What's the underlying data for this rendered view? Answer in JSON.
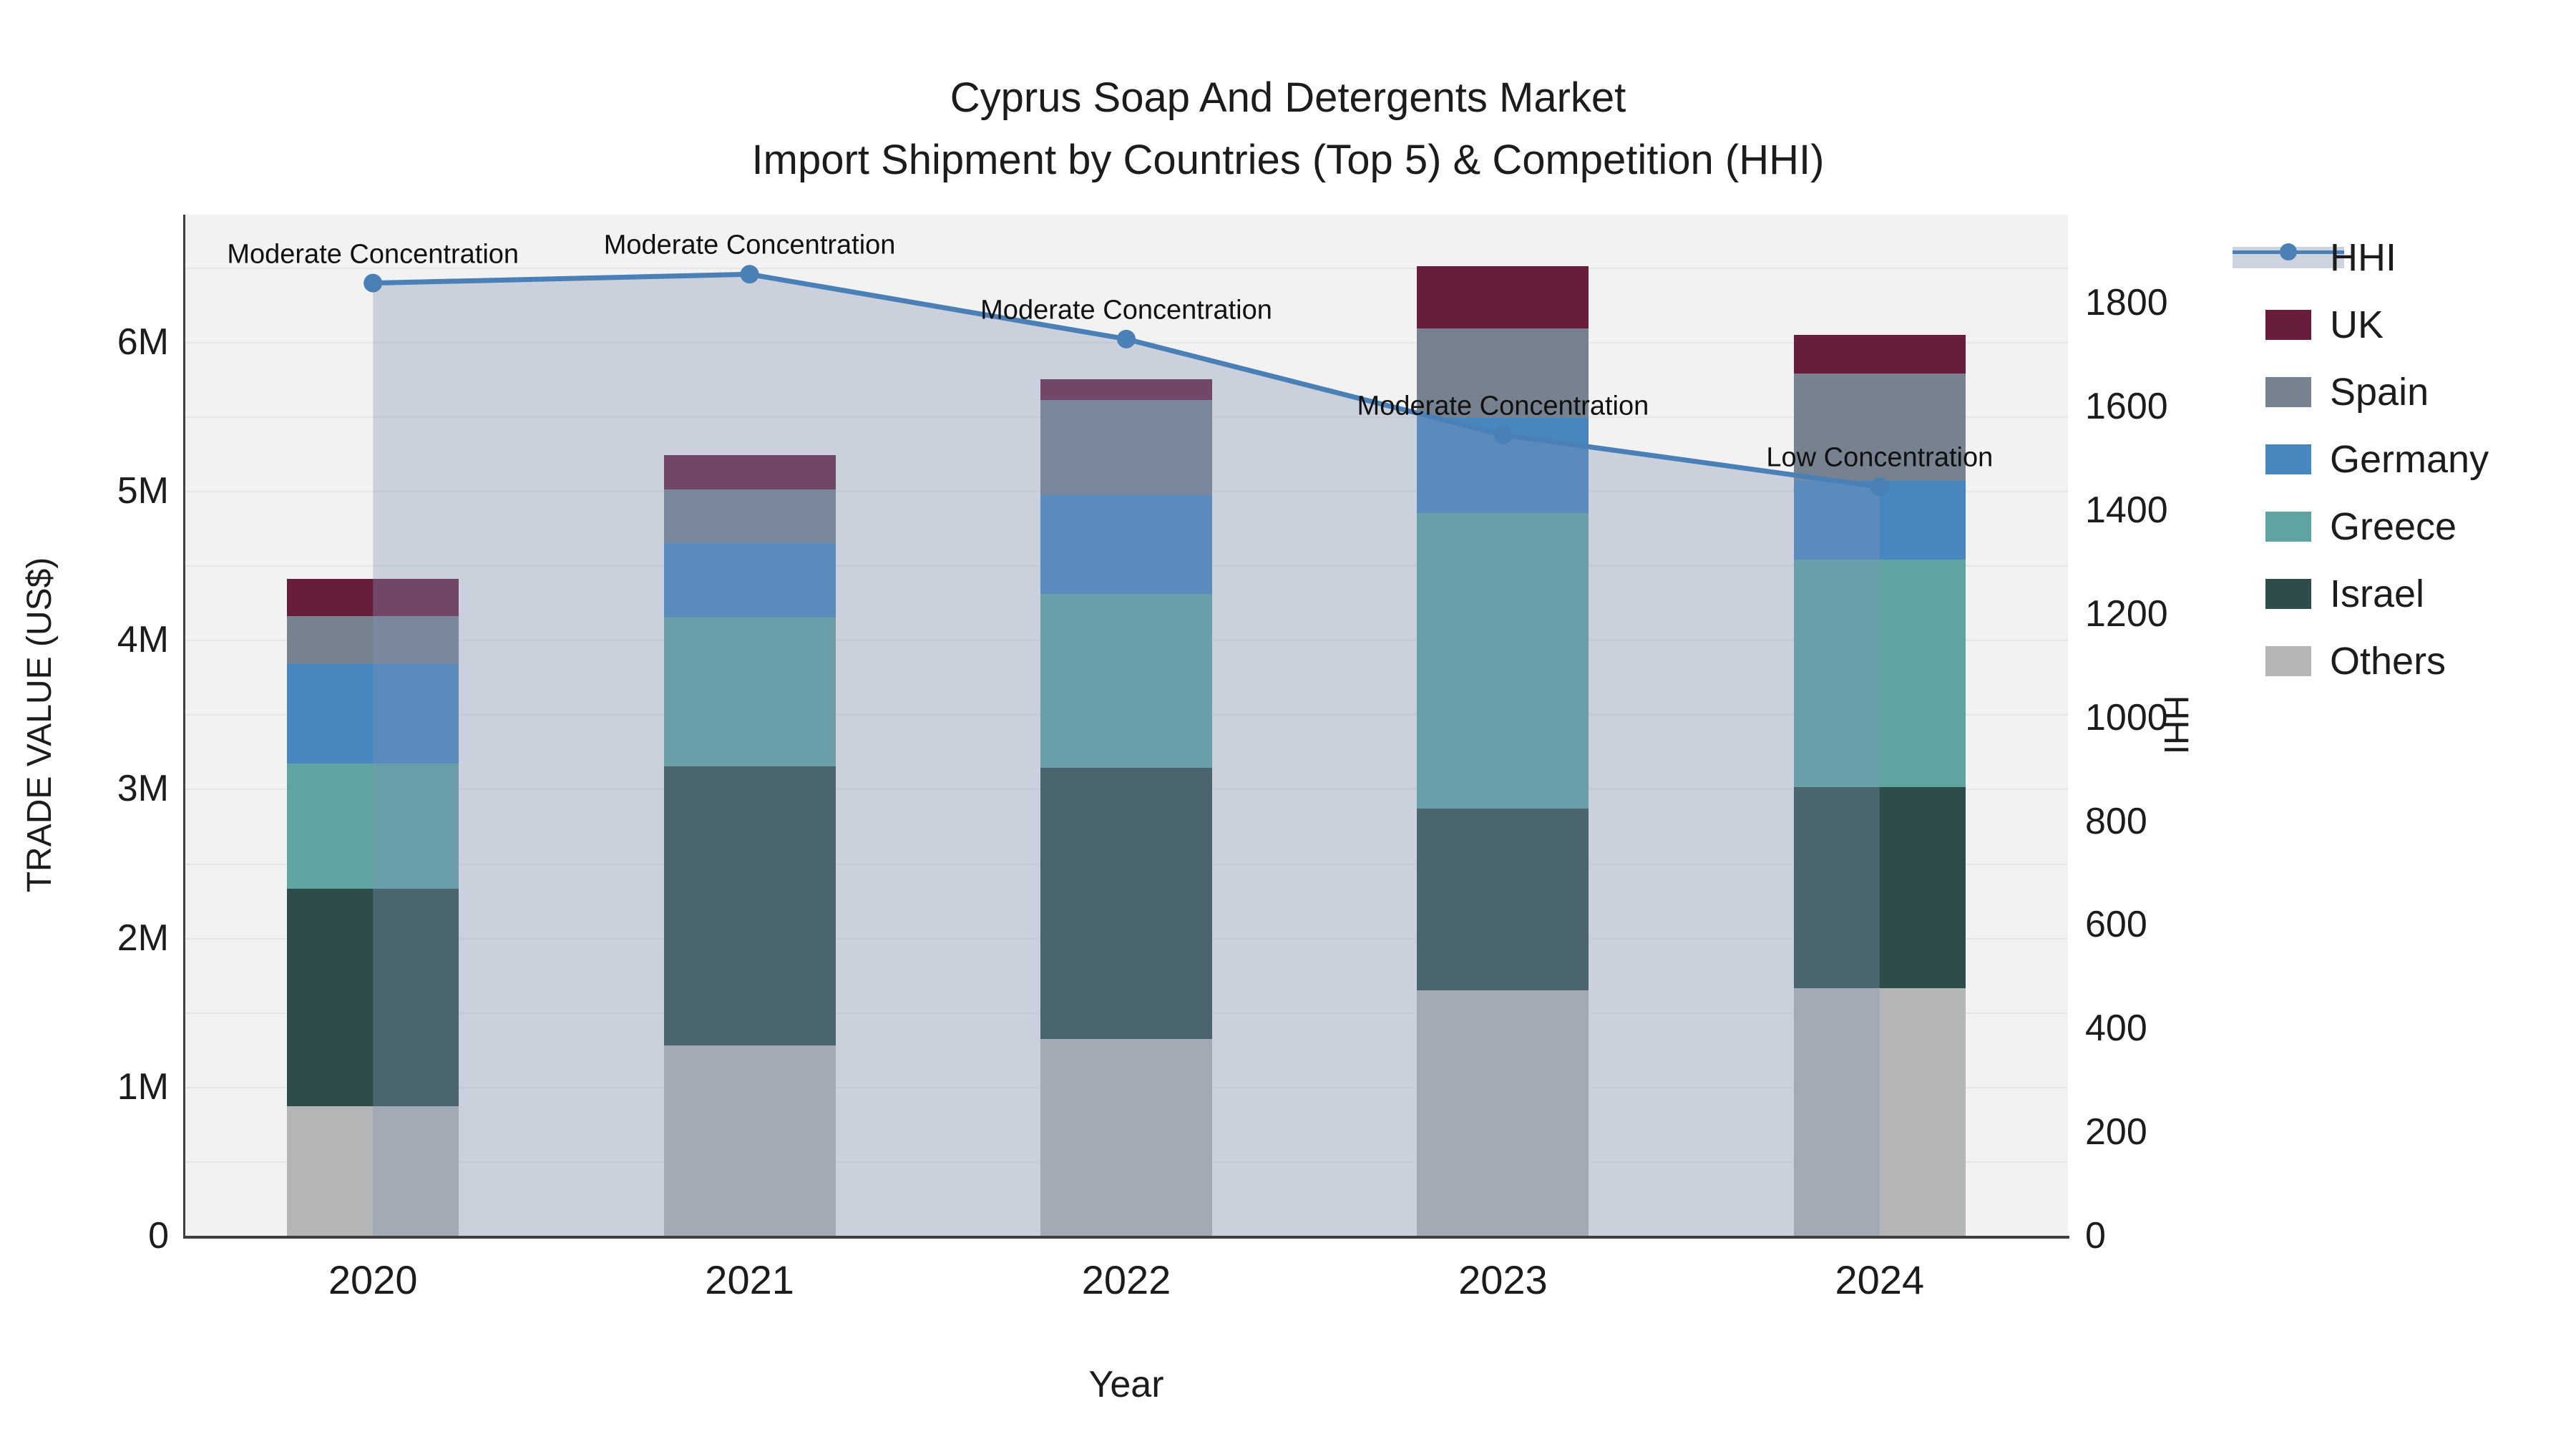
{
  "title": {
    "line1": "Cyprus Soap And Detergents Market",
    "line2": "Import Shipment by Countries (Top 5) & Competition (HHI)"
  },
  "axes": {
    "left": {
      "label": "TRADE VALUE (US$)",
      "tick_labels": [
        "0",
        "1M",
        "2M",
        "3M",
        "4M",
        "5M",
        "6M"
      ],
      "tick_values": [
        0,
        1,
        2,
        3,
        4,
        5,
        6
      ]
    },
    "right": {
      "label": "HHI",
      "tick_labels": [
        "0",
        "200",
        "400",
        "600",
        "800",
        "1000",
        "1200",
        "1400",
        "1600",
        "1800"
      ],
      "tick_values": [
        0,
        200,
        400,
        600,
        800,
        1000,
        1200,
        1400,
        1600,
        1800
      ]
    },
    "x": {
      "label": "Year",
      "tick_labels": [
        "2020",
        "2021",
        "2022",
        "2023",
        "2024"
      ]
    }
  },
  "legend": {
    "items": [
      {
        "label": "HHI",
        "type": "line",
        "color": "#4a80b5"
      },
      {
        "label": "UK",
        "type": "swatch",
        "color": "#691d3c"
      },
      {
        "label": "Spain",
        "type": "swatch",
        "color": "#76828f"
      },
      {
        "label": "Germany",
        "type": "swatch",
        "color": "#4886c0"
      },
      {
        "label": "Greece",
        "type": "swatch",
        "color": "#5fa4a1"
      },
      {
        "label": "Israel",
        "type": "swatch",
        "color": "#2e4c49"
      },
      {
        "label": "Others",
        "type": "swatch",
        "color": "#b3b5b6"
      }
    ]
  },
  "chart_data": {
    "type": "combo-stacked-bar-line",
    "x": [
      "2020",
      "2021",
      "2022",
      "2023",
      "2024"
    ],
    "bar_value_unit": "million US$",
    "stack_order_note": "series listed bottom to top of stack",
    "series": [
      {
        "name": "Others",
        "color": "#b3b5b6",
        "values": [
          0.87,
          1.28,
          1.32,
          1.65,
          1.66
        ]
      },
      {
        "name": "Israel",
        "color": "#2e4c49",
        "values": [
          1.46,
          1.87,
          1.82,
          1.22,
          1.35
        ]
      },
      {
        "name": "Greece",
        "color": "#5fa4a1",
        "values": [
          0.84,
          1.0,
          1.17,
          1.98,
          1.53
        ]
      },
      {
        "name": "Germany",
        "color": "#4886c0",
        "values": [
          0.67,
          0.5,
          0.66,
          0.64,
          0.53
        ]
      },
      {
        "name": "Spain",
        "color": "#76828f",
        "values": [
          0.32,
          0.36,
          0.64,
          0.6,
          0.72
        ]
      },
      {
        "name": "UK",
        "color": "#691d3c",
        "values": [
          0.25,
          0.23,
          0.14,
          0.42,
          0.26
        ]
      }
    ],
    "bar_totals": [
      4.41,
      5.24,
      5.75,
      6.51,
      6.05
    ],
    "line": {
      "name": "HHI",
      "color": "#4a80b5",
      "fill": "rgba(130,150,180,0.35)",
      "values": [
        1838,
        1855,
        1730,
        1545,
        1445
      ]
    },
    "annotations": [
      "Moderate Concentration",
      "Moderate Concentration",
      "Moderate Concentration",
      "Moderate Concentration",
      "Low Concentration"
    ],
    "ylim_left": [
      0,
      6.855
    ],
    "ylim_right": [
      0,
      1970
    ],
    "grid": "horizontal, every 0.5M",
    "legend_position": "right"
  }
}
